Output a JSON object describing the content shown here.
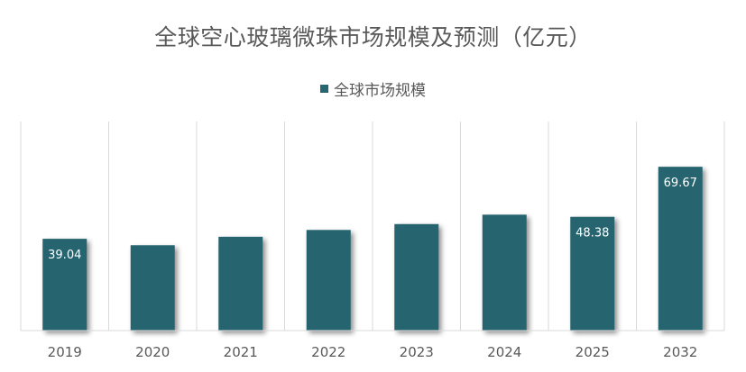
{
  "chart_data": {
    "type": "bar",
    "title": "全球空心玻璃微珠市场规模及预测（亿元）",
    "categories": [
      "2019",
      "2020",
      "2021",
      "2022",
      "2023",
      "2024",
      "2025",
      "2032"
    ],
    "series": [
      {
        "name": "全球市场规模",
        "values": [
          39.04,
          36.3,
          39.9,
          42.8,
          45.3,
          49.3,
          48.38,
          69.67
        ],
        "color": "#276570"
      }
    ],
    "data_labels": [
      "39.04",
      "",
      "",
      "",
      "",
      "",
      "48.38",
      "69.67"
    ],
    "ylim": [
      0,
      80
    ],
    "grid": "vertical category separators",
    "legend": "top-center"
  }
}
